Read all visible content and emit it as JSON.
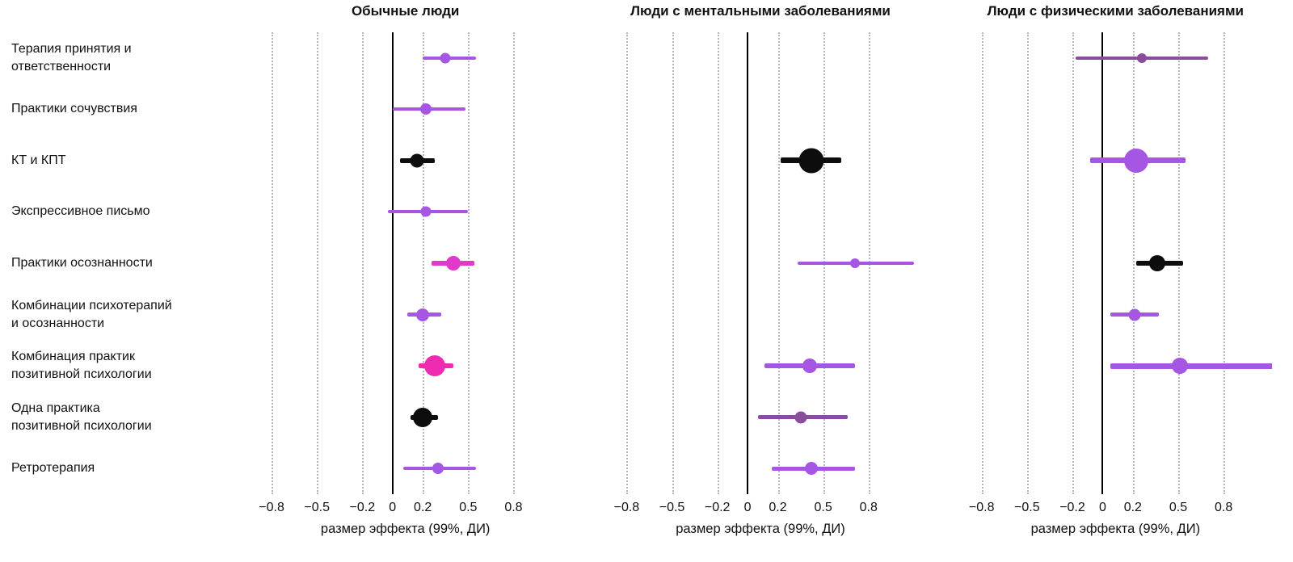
{
  "chart_data": {
    "type": "forest",
    "title": "",
    "ci_level": "99%",
    "xlabel": "размер эффекта (99%, ДИ)",
    "categories": [
      "Терапия принятия и\nответственности",
      "Практики сочувствия",
      "КТ и КПТ",
      "Экспрессивное письмо",
      "Практики осознанности",
      "Комбинации психотерапий\nи осознанности",
      "Комбинация практик\nпозитивной психологии",
      "Одна практика\nпозитивной психологии",
      "Ретротерапия"
    ],
    "xlim": [
      -0.95,
      1.12
    ],
    "tick_values": [
      -0.8,
      -0.5,
      -0.2,
      0,
      0.2,
      0.5,
      0.8
    ],
    "tick_labels": [
      "−0.8",
      "−0.5",
      "−0.2",
      "0",
      "0.2",
      "0.5",
      "0.8"
    ],
    "grid": "dotted-vertical",
    "zero_line": true,
    "legend": "none",
    "colors": {
      "violet": "#a556e3",
      "magenta": "#e139c9",
      "pink": "#ee2bb2",
      "black": "#0d0d0d",
      "plum": "#8a4d9c"
    },
    "panels": [
      {
        "title": "Обычные люди",
        "points": [
          {
            "row": 0,
            "category": "Терапия принятия и ответственности",
            "x": 0.35,
            "lo": 0.2,
            "hi": 0.55,
            "color": "violet",
            "size": 13,
            "lw": 4
          },
          {
            "row": 1,
            "category": "Практики сочувствия",
            "x": 0.22,
            "lo": 0.0,
            "hi": 0.48,
            "color": "violet",
            "size": 14,
            "lw": 4
          },
          {
            "row": 2,
            "category": "КТ и КПТ",
            "x": 0.16,
            "lo": 0.05,
            "hi": 0.28,
            "color": "black",
            "size": 17,
            "lw": 6
          },
          {
            "row": 3,
            "category": "Экспрессивное письмо",
            "x": 0.22,
            "lo": -0.03,
            "hi": 0.5,
            "color": "violet",
            "size": 13,
            "lw": 4
          },
          {
            "row": 4,
            "category": "Практики осознанности",
            "x": 0.4,
            "lo": 0.26,
            "hi": 0.54,
            "color": "magenta",
            "size": 18,
            "lw": 6
          },
          {
            "row": 5,
            "category": "Комбинации психотерапий и осознанности",
            "x": 0.2,
            "lo": 0.1,
            "hi": 0.32,
            "color": "violet",
            "size": 16,
            "lw": 5
          },
          {
            "row": 6,
            "category": "Комбинация практик позитивной психологии",
            "x": 0.28,
            "lo": 0.17,
            "hi": 0.4,
            "color": "pink",
            "size": 26,
            "lw": 6
          },
          {
            "row": 7,
            "category": "Одна практика позитивной психологии",
            "x": 0.2,
            "lo": 0.12,
            "hi": 0.3,
            "color": "black",
            "size": 24,
            "lw": 6
          },
          {
            "row": 8,
            "category": "Ретротерапия",
            "x": 0.3,
            "lo": 0.07,
            "hi": 0.55,
            "color": "violet",
            "size": 14,
            "lw": 4
          }
        ]
      },
      {
        "title": "Люди с ментальными заболеваниями",
        "points": [
          {
            "row": 2,
            "category": "КТ и КПТ",
            "x": 0.42,
            "lo": 0.22,
            "hi": 0.62,
            "color": "black",
            "size": 31,
            "lw": 7
          },
          {
            "row": 4,
            "category": "Практики осознанности",
            "x": 0.71,
            "lo": 0.33,
            "hi": 1.1,
            "color": "violet",
            "size": 12,
            "lw": 4
          },
          {
            "row": 6,
            "category": "Комбинация практик позитивной психологии",
            "x": 0.41,
            "lo": 0.11,
            "hi": 0.71,
            "color": "violet",
            "size": 18,
            "lw": 6
          },
          {
            "row": 7,
            "category": "Одна практика позитивной психологии",
            "x": 0.35,
            "lo": 0.07,
            "hi": 0.66,
            "color": "plum",
            "size": 15,
            "lw": 5
          },
          {
            "row": 8,
            "category": "Ретротерапия",
            "x": 0.42,
            "lo": 0.16,
            "hi": 0.71,
            "color": "violet",
            "size": 16,
            "lw": 5
          }
        ]
      },
      {
        "title": "Люди с физическими заболеваниями",
        "points": [
          {
            "row": 0,
            "category": "Терапия принятия и ответственности",
            "x": 0.26,
            "lo": -0.18,
            "hi": 0.7,
            "color": "plum",
            "size": 12,
            "lw": 4
          },
          {
            "row": 2,
            "category": "КТ и КПТ",
            "x": 0.22,
            "lo": -0.08,
            "hi": 0.55,
            "color": "violet",
            "size": 30,
            "lw": 7
          },
          {
            "row": 4,
            "category": "Практики осознанности",
            "x": 0.36,
            "lo": 0.22,
            "hi": 0.53,
            "color": "black",
            "size": 20,
            "lw": 6
          },
          {
            "row": 5,
            "category": "Комбинации психотерапий и осознанности",
            "x": 0.21,
            "lo": 0.05,
            "hi": 0.37,
            "color": "violet",
            "size": 15,
            "lw": 5
          },
          {
            "row": 6,
            "category": "Комбинация практик позитивной психологии",
            "x": 0.51,
            "lo": 0.05,
            "hi": 1.15,
            "color": "violet",
            "size": 20,
            "lw": 7
          }
        ]
      }
    ]
  }
}
